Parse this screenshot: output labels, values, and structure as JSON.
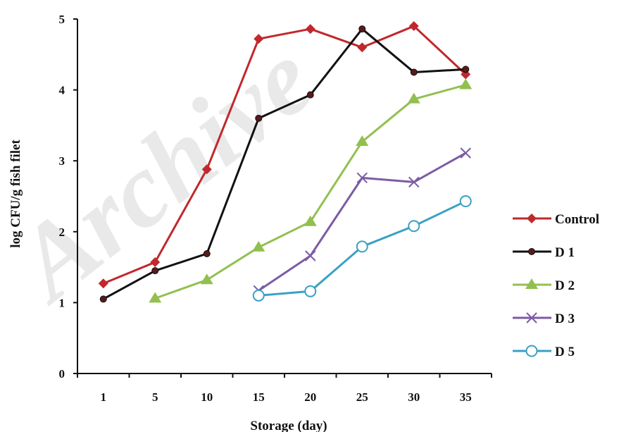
{
  "chart_data": {
    "type": "line",
    "xlabel": "Storage (day)",
    "ylabel": "log CFU/g fish filet",
    "categories": [
      "1",
      "5",
      "10",
      "15",
      "20",
      "25",
      "30",
      "35"
    ],
    "ylim": [
      0,
      5
    ],
    "yticks": [
      "0",
      "1",
      "2",
      "3",
      "4",
      "5"
    ],
    "grid": false,
    "legend_position": "right",
    "watermark": "Archive",
    "series": [
      {
        "name": "Control",
        "color": "#c0282d",
        "marker": "diamond",
        "values": [
          1.27,
          1.57,
          2.88,
          4.72,
          4.86,
          4.6,
          4.9,
          4.22
        ]
      },
      {
        "name": "D 1",
        "color": "#111111",
        "marker": "dot",
        "values": [
          1.05,
          1.45,
          1.69,
          3.6,
          3.93,
          4.86,
          4.25,
          4.29
        ]
      },
      {
        "name": "D 2",
        "color": "#92c050",
        "marker": "triangle",
        "values": [
          null,
          1.06,
          1.32,
          1.78,
          2.14,
          3.27,
          3.87,
          4.07
        ]
      },
      {
        "name": "D 3",
        "color": "#7d5ba6",
        "marker": "cross",
        "values": [
          null,
          null,
          null,
          1.17,
          1.66,
          2.76,
          2.7,
          3.11
        ]
      },
      {
        "name": "D 5",
        "color": "#3aa1c4",
        "marker": "circle",
        "values": [
          null,
          null,
          null,
          1.1,
          1.16,
          1.79,
          2.08,
          2.43
        ]
      }
    ]
  }
}
